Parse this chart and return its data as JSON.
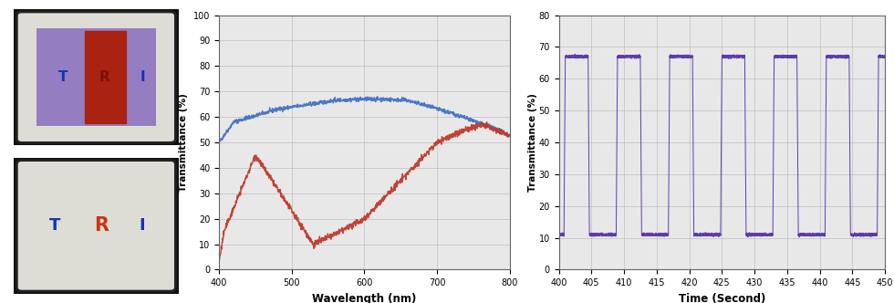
{
  "chart1": {
    "xlabel": "Wavelength (nm)",
    "ylabel": "Transmittance (%)",
    "xlim": [
      400,
      800
    ],
    "ylim": [
      0,
      100
    ],
    "xticks": [
      400,
      500,
      600,
      700,
      800
    ],
    "yticks": [
      0,
      10,
      20,
      30,
      40,
      50,
      60,
      70,
      80,
      90,
      100
    ],
    "blue_color": "#4472C4",
    "red_color": "#C0392B",
    "grid_color": "#BBBBBB",
    "bg_color": "#E8E8E8"
  },
  "chart2": {
    "xlabel": "Time (Second)",
    "ylabel": "Transmittance (%)",
    "xlim": [
      400,
      450
    ],
    "ylim": [
      0,
      80
    ],
    "xticks": [
      400,
      405,
      410,
      415,
      420,
      425,
      430,
      435,
      440,
      445,
      450
    ],
    "yticks": [
      0,
      10,
      20,
      30,
      40,
      50,
      60,
      70,
      80
    ],
    "line_color": "#5533AA",
    "grid_color": "#BBBBBB",
    "bg_color": "#E8E8E8",
    "high_val": 67,
    "low_val": 11,
    "period": 8.0,
    "high_dur": 3.5,
    "transition": 0.2
  }
}
